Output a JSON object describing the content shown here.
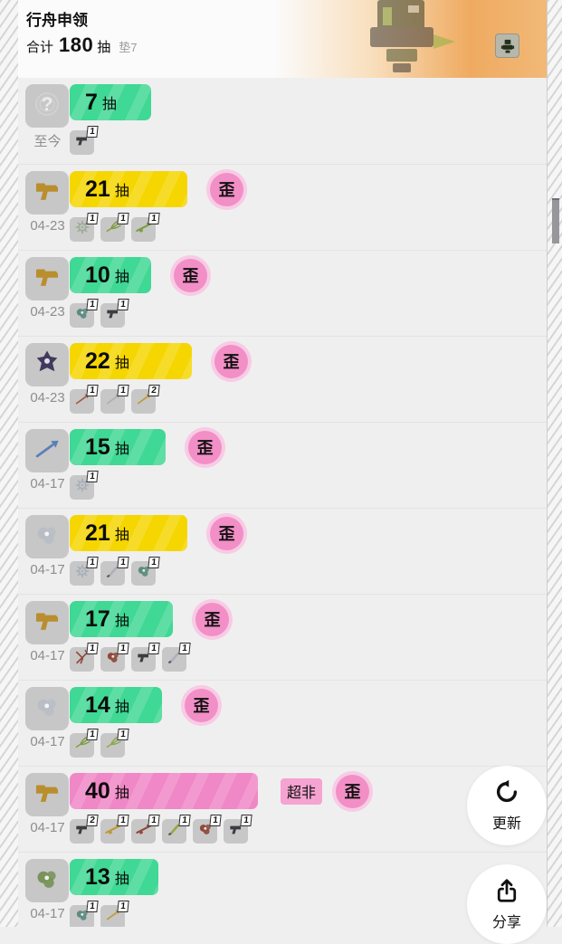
{
  "header": {
    "title": "行舟申领",
    "total_prefix": "合计",
    "total_count": "180",
    "total_unit": "抽",
    "pity_label": "垫7",
    "banner_icon": "mech-icon"
  },
  "unit": "抽",
  "badges": {
    "wai": "歪",
    "chaofei": "超非"
  },
  "colors": {
    "green": "#3fd894",
    "yellow": "#f5d600",
    "pink": "#f087c6",
    "wai_badge": "#f28fc6",
    "wai_ring": "#f8cbe5",
    "chaofei_bg": "#f5a3d1"
  },
  "floating_buttons": {
    "update": {
      "label": "更新",
      "icon": "refresh-icon"
    },
    "share": {
      "label": "分享",
      "icon": "share-icon"
    }
  },
  "rows": [
    {
      "date": "至今",
      "count": 7,
      "color": "green",
      "wai": false,
      "chaofei": false,
      "icon": "unknown-item-icon",
      "items": [
        {
          "icon": "dark-pistol-icon",
          "count": 1
        }
      ]
    },
    {
      "date": "04-23",
      "count": 21,
      "color": "yellow",
      "wai": true,
      "chaofei": false,
      "icon": "gold-gun-icon",
      "items": [
        {
          "icon": "sparkle-gear-icon",
          "count": 1
        },
        {
          "icon": "green-trident-icon",
          "count": 1
        },
        {
          "icon": "green-rifle-icon",
          "count": 1
        }
      ]
    },
    {
      "date": "04-23",
      "count": 10,
      "color": "green",
      "wai": true,
      "chaofei": false,
      "icon": "gold-gun-icon",
      "items": [
        {
          "icon": "teal-creature-icon",
          "count": 1
        },
        {
          "icon": "dark-pistol-icon",
          "count": 1
        }
      ]
    },
    {
      "date": "04-23",
      "count": 22,
      "color": "yellow",
      "wai": true,
      "chaofei": false,
      "icon": "dark-creature-icon",
      "items": [
        {
          "icon": "red-spear-icon",
          "count": 1
        },
        {
          "icon": "silver-spear-icon",
          "count": 1
        },
        {
          "icon": "gold-spear-icon",
          "count": 2
        }
      ]
    },
    {
      "date": "04-17",
      "count": 15,
      "color": "green",
      "wai": true,
      "chaofei": false,
      "icon": "blue-spear-icon",
      "items": [
        {
          "icon": "silver-gear-icon",
          "count": 1
        }
      ]
    },
    {
      "date": "04-17",
      "count": 21,
      "color": "yellow",
      "wai": true,
      "chaofei": false,
      "icon": "silver-creature-icon",
      "items": [
        {
          "icon": "silver-gear-icon",
          "count": 1
        },
        {
          "icon": "silver-blade-icon",
          "count": 1
        },
        {
          "icon": "teal-creature-icon",
          "count": 1
        }
      ]
    },
    {
      "date": "04-17",
      "count": 17,
      "color": "green",
      "wai": true,
      "chaofei": false,
      "icon": "gold-gun-icon",
      "items": [
        {
          "icon": "red-crossbow-icon",
          "count": 1
        },
        {
          "icon": "red-creature-icon",
          "count": 1
        },
        {
          "icon": "dark-pistol-icon",
          "count": 1
        },
        {
          "icon": "silver-blade-icon",
          "count": 1
        }
      ]
    },
    {
      "date": "04-17",
      "count": 14,
      "color": "green",
      "wai": true,
      "chaofei": false,
      "icon": "silver-creature-icon",
      "items": [
        {
          "icon": "green-trident-icon",
          "count": 1
        },
        {
          "icon": "green-fork-icon",
          "count": 1
        }
      ]
    },
    {
      "date": "04-17",
      "count": 40,
      "color": "pink",
      "wai": true,
      "chaofei": true,
      "icon": "gold-gun-icon",
      "items": [
        {
          "icon": "dark-pistol-icon",
          "count": 2
        },
        {
          "icon": "gold-rifle-icon",
          "count": 1
        },
        {
          "icon": "red-rifle-icon",
          "count": 1
        },
        {
          "icon": "green-blade-icon",
          "count": 1
        },
        {
          "icon": "red-creature-icon",
          "count": 1
        },
        {
          "icon": "dark-pistol-icon",
          "count": 1
        }
      ]
    },
    {
      "date": "04-17",
      "count": 13,
      "color": "green",
      "wai": false,
      "chaofei": false,
      "icon": "green-creature-icon",
      "items": [
        {
          "icon": "teal-creature-icon",
          "count": 1
        },
        {
          "icon": "gold-spear-icon",
          "count": 1
        }
      ]
    }
  ]
}
